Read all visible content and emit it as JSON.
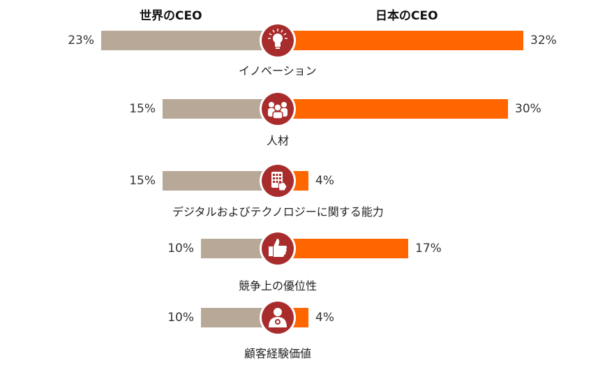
{
  "chart_data": {
    "type": "bar",
    "title": "",
    "xlabel": "",
    "ylabel": "",
    "unit": "%",
    "xlim": [
      0,
      32
    ],
    "categories": [
      "イノベーション",
      "人材",
      "デジタルおよびテクノロジーに関する能力",
      "競争上の優位性",
      "顧客経験価値"
    ],
    "icons": [
      "lightbulb-icon",
      "people-icon",
      "tablet-touch-icon",
      "thumbs-up-icon",
      "customer-medal-icon"
    ],
    "series": [
      {
        "name": "世界のCEO",
        "color": "#B8A898",
        "values": [
          23,
          15,
          15,
          10,
          10
        ],
        "labels": [
          "23%",
          "15%",
          "15%",
          "10%",
          "10%"
        ]
      },
      {
        "name": "日本のCEO",
        "color": "#FF6600",
        "values": [
          32,
          30,
          4,
          17,
          4
        ],
        "labels": [
          "32%",
          "30%",
          "4%",
          "17%",
          "4%"
        ]
      }
    ],
    "icon_color": "#A82C2C"
  }
}
